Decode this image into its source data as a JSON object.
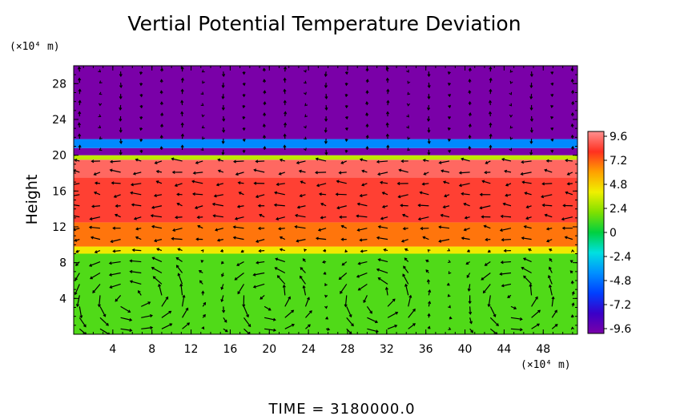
{
  "chart_data": {
    "type": "heatmap",
    "title": "Vertial Potential Temperature Deviation",
    "ylabel": "Height",
    "y_unit": "(×10⁴ m)",
    "x_unit": "(×10⁴ m)",
    "x_ticks": [
      "4",
      "8",
      "12",
      "16",
      "20",
      "24",
      "28",
      "32",
      "36",
      "40",
      "44",
      "48"
    ],
    "y_ticks": [
      "4",
      "8",
      "12",
      "16",
      "20",
      "24",
      "28"
    ],
    "xlim": [
      0,
      51.5
    ],
    "ylim": [
      0,
      30
    ],
    "footer": "TIME  =  3180000.0",
    "colorbar": {
      "ticks": [
        "9.6",
        "7.2",
        "4.8",
        "2.4",
        "0",
        "-2.4",
        "-4.8",
        "-7.2",
        "-9.6"
      ],
      "range": [
        -9.6,
        9.6
      ]
    },
    "layers": [
      {
        "y_from": 0,
        "y_to": 9,
        "value": 1.2
      },
      {
        "y_from": 9,
        "y_to": 9.8,
        "value": 4.0
      },
      {
        "y_from": 9.8,
        "y_to": 12.5,
        "value": 6.5
      },
      {
        "y_from": 12.5,
        "y_to": 17.5,
        "value": 8.0
      },
      {
        "y_from": 17.5,
        "y_to": 19.5,
        "value": 8.8
      },
      {
        "y_from": 19.5,
        "y_to": 20.0,
        "value": 3.0
      },
      {
        "y_from": 20.0,
        "y_to": 20.8,
        "value": -9.6
      },
      {
        "y_from": 20.8,
        "y_to": 21.8,
        "value": -4.0
      },
      {
        "y_from": 21.8,
        "y_to": 30,
        "value": -9.6
      }
    ],
    "vortices": [
      {
        "x": 4,
        "y": 4
      },
      {
        "x": 8,
        "y": 4
      },
      {
        "x": 20,
        "y": 4
      },
      {
        "x": 31,
        "y": 4
      },
      {
        "x": 45,
        "y": 4
      }
    ]
  }
}
